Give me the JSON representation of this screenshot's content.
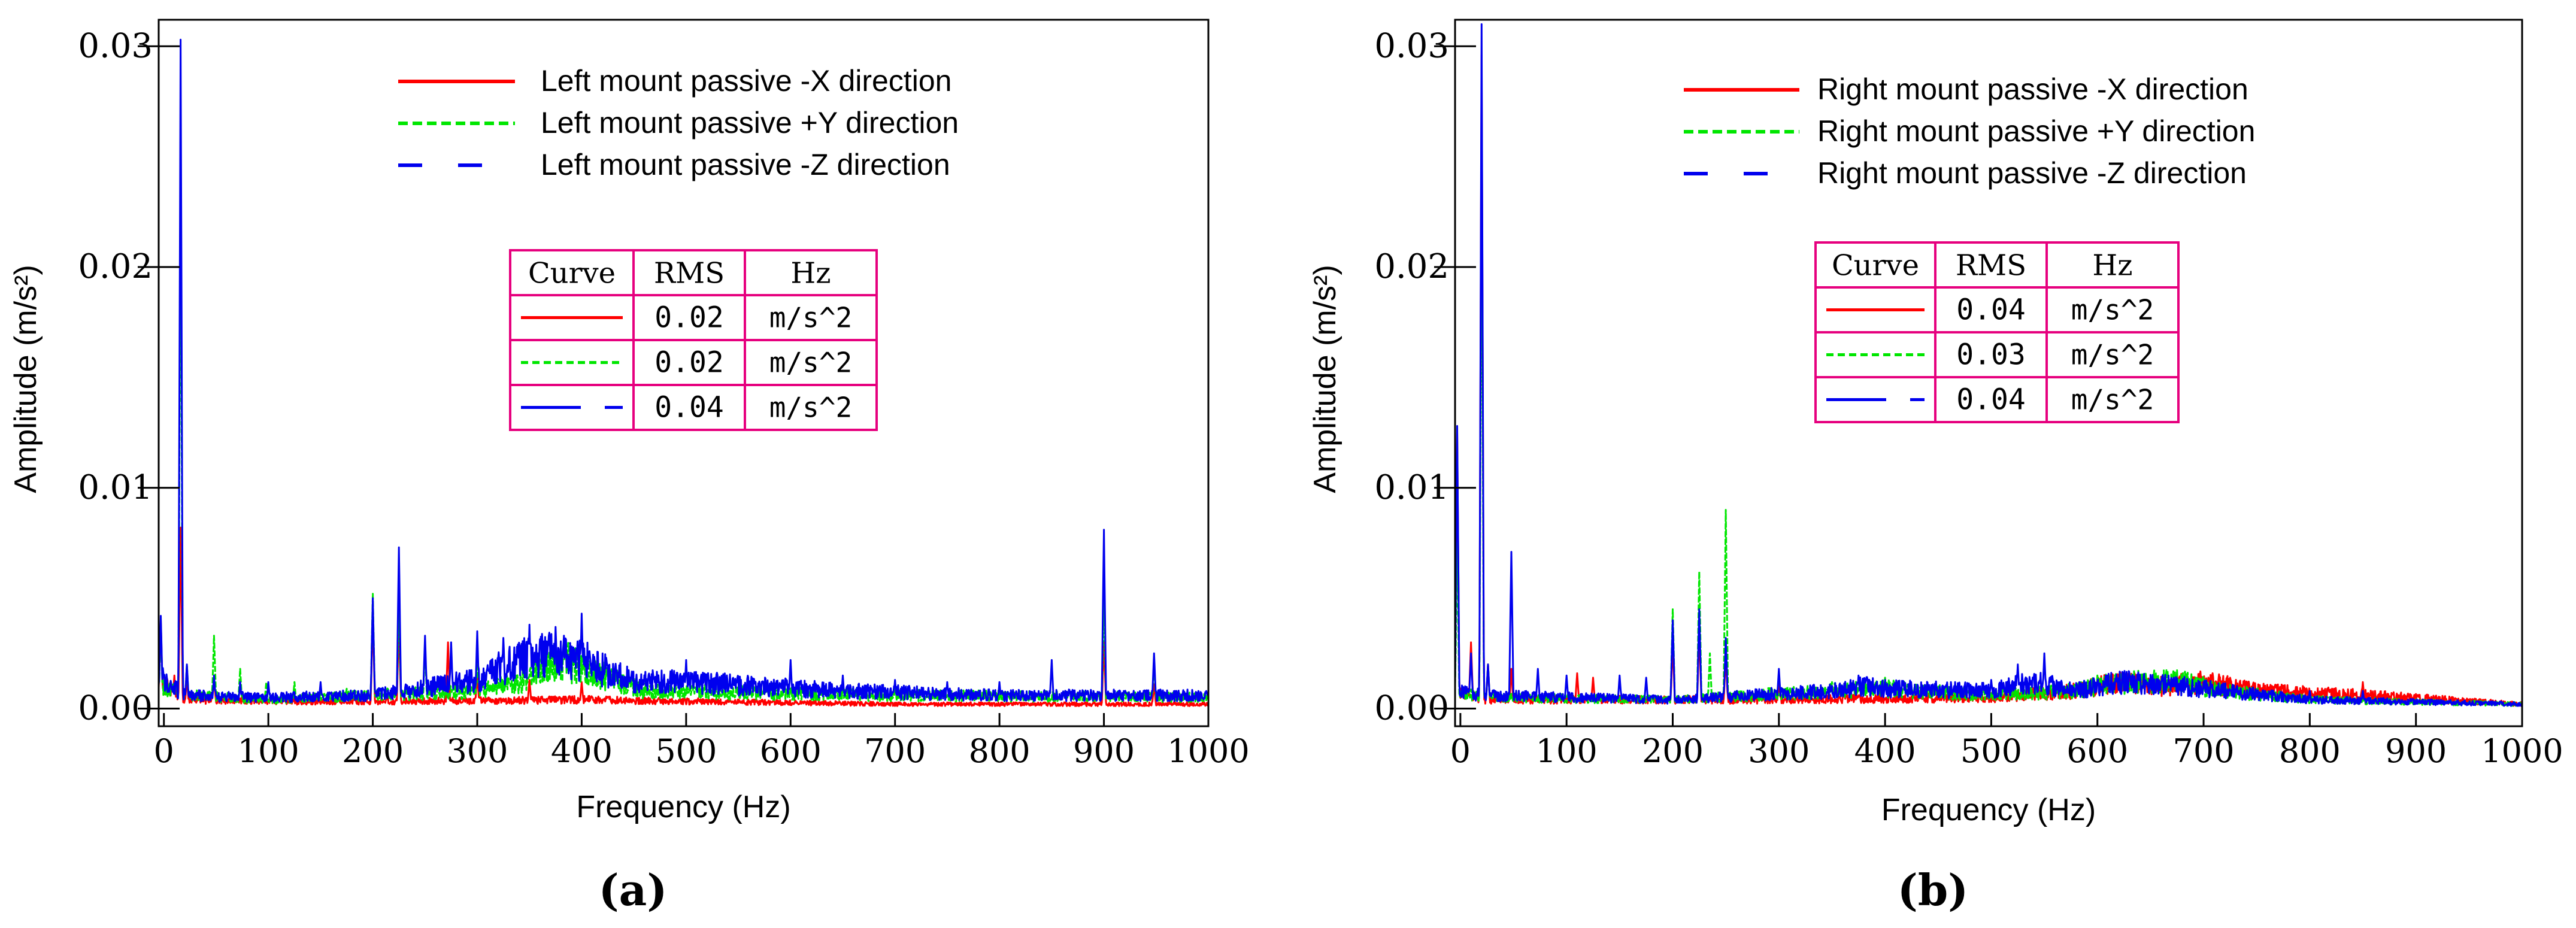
{
  "chart_data": [
    {
      "panel_label": "(a)",
      "type": "line",
      "xlabel": "Frequency (Hz)",
      "ylabel": "Amplitude (m/s²)",
      "xlim": [
        -5,
        1000
      ],
      "ylim": [
        -0.0008,
        0.0312
      ],
      "x_ticks": [
        0,
        100,
        200,
        300,
        400,
        500,
        600,
        700,
        800,
        900,
        1000
      ],
      "x_tick_labels": [
        "0",
        "100",
        "200",
        "300",
        "400",
        "500",
        "600",
        "700",
        "800",
        "900",
        "1000"
      ],
      "y_ticks": [
        0.0,
        0.01,
        0.02,
        0.03
      ],
      "y_tick_labels": [
        "0.00",
        "0.01",
        "0.02",
        "0.03"
      ],
      "legend": [
        {
          "label": "Left mount passive  -X direction",
          "color": "#ff0000",
          "style": "solid"
        },
        {
          "label": "Left mount passive +Y direction",
          "color": "#00e600",
          "style": "short-dash"
        },
        {
          "label": "Left mount passive  -Z direction",
          "color": "#0000ee",
          "style": "long-dash"
        }
      ],
      "rms_table": {
        "headers": [
          "Curve",
          "RMS",
          "Hz"
        ],
        "rows": [
          {
            "color": "#ff0000",
            "style": "solid",
            "rms": "0.02",
            "unit": "m/s^2"
          },
          {
            "color": "#00e600",
            "style": "short-dash",
            "rms": "0.02",
            "unit": "m/s^2"
          },
          {
            "color": "#0000ee",
            "style": "long-dash",
            "rms": "0.04",
            "unit": "m/s^2"
          }
        ]
      },
      "series": [
        {
          "name": "Left mount passive  -X direction",
          "color": "#ff0000",
          "base": [
            [
              -5,
              0.0012
            ],
            [
              20,
              0.0004
            ],
            [
              150,
              0.0003
            ],
            [
              400,
              0.0004
            ],
            [
              700,
              0.0002
            ],
            [
              1000,
              0.0002
            ]
          ],
          "peaks": [
            [
              -3,
              0.004
            ],
            [
              10,
              0.0015
            ],
            [
              16,
              0.0082
            ],
            [
              22,
              0.0014
            ],
            [
              48,
              0.0014
            ],
            [
              200,
              0.0042
            ],
            [
              225,
              0.0038
            ],
            [
              272,
              0.003
            ],
            [
              300,
              0.0016
            ],
            [
              350,
              0.0013
            ],
            [
              400,
              0.0012
            ],
            [
              900,
              0.003
            ],
            [
              948,
              0.0011
            ]
          ]
        },
        {
          "name": "Left mount passive +Y direction",
          "color": "#00e600",
          "base": [
            [
              -5,
              0.001
            ],
            [
              20,
              0.0006
            ],
            [
              100,
              0.0004
            ],
            [
              300,
              0.0008
            ],
            [
              340,
              0.0012
            ],
            [
              380,
              0.0022
            ],
            [
              400,
              0.0018
            ],
            [
              460,
              0.0008
            ],
            [
              700,
              0.0006
            ],
            [
              1000,
              0.0005
            ]
          ],
          "peaks": [
            [
              -3,
              0.0038
            ],
            [
              16,
              0.0235
            ],
            [
              22,
              0.002
            ],
            [
              48,
              0.0033
            ],
            [
              73,
              0.0018
            ],
            [
              98,
              0.0012
            ],
            [
              125,
              0.0012
            ],
            [
              175,
              0.0009
            ],
            [
              200,
              0.0052
            ],
            [
              225,
              0.005
            ],
            [
              250,
              0.0028
            ],
            [
              300,
              0.0022
            ],
            [
              400,
              0.0015
            ],
            [
              700,
              0.001
            ],
            [
              900,
              0.005
            ],
            [
              948,
              0.0022
            ]
          ]
        },
        {
          "name": "Left mount passive  -Z direction",
          "color": "#0000ee",
          "base": [
            [
              -5,
              0.0014
            ],
            [
              20,
              0.0006
            ],
            [
              100,
              0.0005
            ],
            [
              200,
              0.0006
            ],
            [
              300,
              0.0013
            ],
            [
              330,
              0.002
            ],
            [
              360,
              0.0025
            ],
            [
              400,
              0.0022
            ],
            [
              450,
              0.0012
            ],
            [
              500,
              0.0012
            ],
            [
              650,
              0.0008
            ],
            [
              800,
              0.0006
            ],
            [
              900,
              0.0006
            ],
            [
              1000,
              0.0006
            ]
          ],
          "peaks": [
            [
              -3,
              0.0042
            ],
            [
              16,
              0.0303
            ],
            [
              22,
              0.002
            ],
            [
              48,
              0.0015
            ],
            [
              73,
              0.0012
            ],
            [
              100,
              0.0012
            ],
            [
              150,
              0.0012
            ],
            [
              200,
              0.005
            ],
            [
              225,
              0.0073
            ],
            [
              250,
              0.0033
            ],
            [
              275,
              0.003
            ],
            [
              300,
              0.0035
            ],
            [
              325,
              0.0032
            ],
            [
              350,
              0.0038
            ],
            [
              375,
              0.0037
            ],
            [
              400,
              0.0043
            ],
            [
              500,
              0.0022
            ],
            [
              548,
              0.0012
            ],
            [
              600,
              0.0022
            ],
            [
              650,
              0.0015
            ],
            [
              700,
              0.0013
            ],
            [
              750,
              0.0012
            ],
            [
              800,
              0.0012
            ],
            [
              850,
              0.0022
            ],
            [
              900,
              0.0081
            ],
            [
              948,
              0.0025
            ]
          ]
        }
      ]
    },
    {
      "panel_label": "(b)",
      "type": "line",
      "xlabel": "Frequency (Hz)",
      "ylabel": "Amplitude (m/s²)",
      "xlim": [
        -5,
        1000
      ],
      "ylim": [
        -0.0008,
        0.0312
      ],
      "x_ticks": [
        0,
        100,
        200,
        300,
        400,
        500,
        600,
        700,
        800,
        900,
        1000
      ],
      "x_tick_labels": [
        "0",
        "100",
        "200",
        "300",
        "400",
        "500",
        "600",
        "700",
        "800",
        "900",
        "1000"
      ],
      "y_ticks": [
        0.0,
        0.01,
        0.02,
        0.03
      ],
      "y_tick_labels": [
        "0.00",
        "0.01",
        "0.02",
        "0.03"
      ],
      "legend": [
        {
          "label": "Right mount passive  -X direction",
          "color": "#ff0000",
          "style": "solid"
        },
        {
          "label": "Right mount passive +Y direction",
          "color": "#00e600",
          "style": "short-dash"
        },
        {
          "label": "Right mount passive  -Z direction",
          "color": "#0000ee",
          "style": "long-dash"
        }
      ],
      "rms_table": {
        "headers": [
          "Curve",
          "RMS",
          "Hz"
        ],
        "rows": [
          {
            "color": "#ff0000",
            "style": "solid",
            "rms": "0.04",
            "unit": "m/s^2"
          },
          {
            "color": "#00e600",
            "style": "short-dash",
            "rms": "0.03",
            "unit": "m/s^2"
          },
          {
            "color": "#0000ee",
            "style": "long-dash",
            "rms": "0.04",
            "unit": "m/s^2"
          }
        ]
      },
      "series": [
        {
          "name": "Right mount passive  -X direction",
          "color": "#ff0000",
          "base": [
            [
              -5,
              0.001
            ],
            [
              20,
              0.0004
            ],
            [
              300,
              0.0004
            ],
            [
              500,
              0.0005
            ],
            [
              580,
              0.0008
            ],
            [
              620,
              0.0012
            ],
            [
              660,
              0.001
            ],
            [
              700,
              0.0012
            ],
            [
              750,
              0.0008
            ],
            [
              850,
              0.0006
            ],
            [
              1000,
              0.0002
            ]
          ],
          "peaks": [
            [
              -3,
              0.0125
            ],
            [
              10,
              0.003
            ],
            [
              20,
              0.0296
            ],
            [
              26,
              0.002
            ],
            [
              48,
              0.0018
            ],
            [
              110,
              0.0016
            ],
            [
              125,
              0.0014
            ],
            [
              200,
              0.003
            ],
            [
              225,
              0.0035
            ],
            [
              250,
              0.0025
            ],
            [
              300,
              0.0012
            ],
            [
              625,
              0.0015
            ],
            [
              675,
              0.0016
            ],
            [
              725,
              0.0014
            ],
            [
              850,
              0.0012
            ]
          ]
        },
        {
          "name": "Right mount passive +Y direction",
          "color": "#00e600",
          "base": [
            [
              -5,
              0.0008
            ],
            [
              20,
              0.0005
            ],
            [
              200,
              0.0004
            ],
            [
              350,
              0.0008
            ],
            [
              400,
              0.0009
            ],
            [
              500,
              0.0006
            ],
            [
              580,
              0.0008
            ],
            [
              620,
              0.0012
            ],
            [
              680,
              0.0012
            ],
            [
              720,
              0.0008
            ],
            [
              800,
              0.0004
            ],
            [
              1000,
              0.0002
            ]
          ],
          "peaks": [
            [
              -3,
              0.0075
            ],
            [
              20,
              0.024
            ],
            [
              26,
              0.002
            ],
            [
              200,
              0.0045
            ],
            [
              225,
              0.0062
            ],
            [
              235,
              0.0025
            ],
            [
              250,
              0.009
            ],
            [
              350,
              0.0012
            ],
            [
              400,
              0.0014
            ],
            [
              450,
              0.001
            ],
            [
              600,
              0.0015
            ],
            [
              700,
              0.0013
            ]
          ]
        },
        {
          "name": "Right mount passive  -Z direction",
          "color": "#0000ee",
          "base": [
            [
              -5,
              0.0008
            ],
            [
              20,
              0.0006
            ],
            [
              200,
              0.0004
            ],
            [
              350,
              0.0008
            ],
            [
              380,
              0.001
            ],
            [
              400,
              0.0009
            ],
            [
              500,
              0.0008
            ],
            [
              540,
              0.0012
            ],
            [
              580,
              0.0008
            ],
            [
              620,
              0.0012
            ],
            [
              680,
              0.001
            ],
            [
              720,
              0.0008
            ],
            [
              800,
              0.0004
            ],
            [
              1000,
              0.0002
            ]
          ],
          "peaks": [
            [
              -3,
              0.0128
            ],
            [
              10,
              0.0025
            ],
            [
              20,
              0.031
            ],
            [
              26,
              0.002
            ],
            [
              48,
              0.0071
            ],
            [
              73,
              0.0018
            ],
            [
              100,
              0.0015
            ],
            [
              150,
              0.0015
            ],
            [
              175,
              0.0014
            ],
            [
              200,
              0.004
            ],
            [
              225,
              0.0045
            ],
            [
              250,
              0.0032
            ],
            [
              300,
              0.0018
            ],
            [
              375,
              0.0015
            ],
            [
              400,
              0.0013
            ],
            [
              500,
              0.0013
            ],
            [
              525,
              0.002
            ],
            [
              550,
              0.0025
            ],
            [
              600,
              0.0012
            ],
            [
              650,
              0.0012
            ],
            [
              700,
              0.0012
            ],
            [
              800,
              0.0008
            ],
            [
              850,
              0.0008
            ]
          ]
        }
      ]
    }
  ]
}
